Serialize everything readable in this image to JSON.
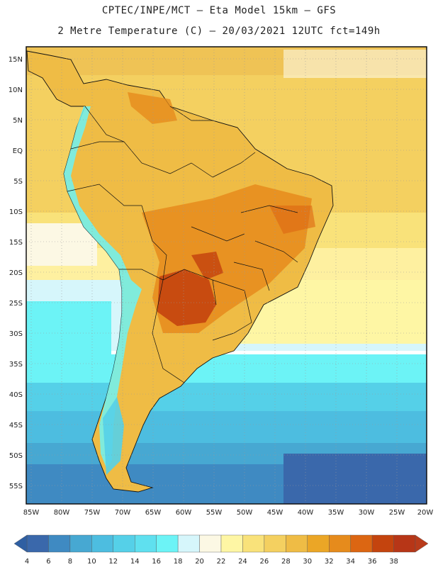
{
  "header": {
    "line1": "CPTEC/INPE/MCT –  Eta Model 15km – GFS",
    "line2": "2 Metre Temperature (C) – 20/03/2021 12UTC fct=149h"
  },
  "map": {
    "region": "South America",
    "lat_labels": [
      "15N",
      "10N",
      "5N",
      "EQ",
      "5S",
      "10S",
      "15S",
      "20S",
      "25S",
      "30S",
      "35S",
      "40S",
      "45S",
      "50S",
      "55S"
    ],
    "lon_labels": [
      "85W",
      "80W",
      "75W",
      "70W",
      "65W",
      "60W",
      "55W",
      "50W",
      "45W",
      "40W",
      "35W",
      "30W",
      "25W",
      "20W"
    ]
  },
  "legend": {
    "levels": [
      "4",
      "6",
      "8",
      "10",
      "12",
      "14",
      "16",
      "18",
      "20",
      "22",
      "24",
      "26",
      "28",
      "30",
      "32",
      "34",
      "36",
      "38"
    ],
    "colors": [
      "#3a68ab",
      "#3f8ac2",
      "#47a8d2",
      "#4dbde0",
      "#55d0e8",
      "#5fe0ef",
      "#6cf3f6",
      "#d6f6fb",
      "#fcf8e4",
      "#fef6a4",
      "#f9e27a",
      "#f4d060",
      "#efbc45",
      "#eba626",
      "#e68b1c",
      "#dc6612",
      "#c4440e",
      "#b73617"
    ],
    "left_arrow_color": "#2f5fa2",
    "right_arrow_color": "#b93b1a"
  }
}
